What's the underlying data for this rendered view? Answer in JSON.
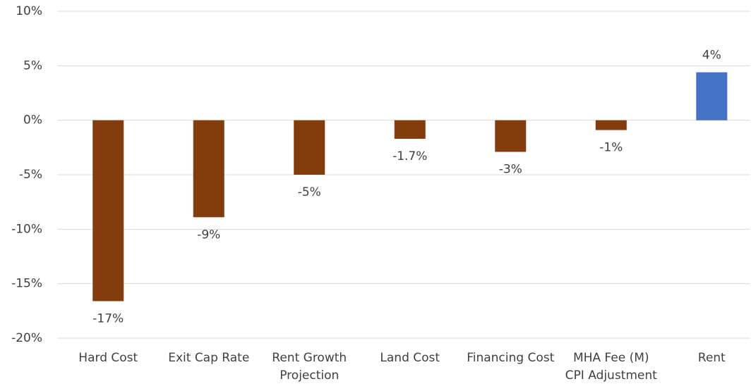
{
  "chart_data": {
    "type": "bar",
    "categories": [
      "Hard Cost",
      "Exit Cap Rate",
      "Rent Growth\nProjection",
      "Land Cost",
      "Financing Cost",
      "MHA Fee (M)\nCPI Adjustment",
      "Rent"
    ],
    "values": [
      -16.6,
      -8.9,
      -5,
      -1.7,
      -2.9,
      -0.9,
      4.4
    ],
    "value_labels": [
      "-17%",
      "-9%",
      "-5%",
      "-1.7%",
      "-3%",
      "-1%",
      "4%"
    ],
    "colors": [
      "#843c0c",
      "#843c0c",
      "#843c0c",
      "#843c0c",
      "#843c0c",
      "#843c0c",
      "#4472c4"
    ],
    "ylim": [
      -20,
      10
    ],
    "yticks": [
      {
        "value": -20,
        "label": "-20%"
      },
      {
        "value": -15,
        "label": "-15%"
      },
      {
        "value": -10,
        "label": "-10%"
      },
      {
        "value": -5,
        "label": "-5%"
      },
      {
        "value": 0,
        "label": "0%"
      },
      {
        "value": 5,
        "label": "5%"
      },
      {
        "value": 10,
        "label": "10%"
      }
    ],
    "grid": true
  }
}
